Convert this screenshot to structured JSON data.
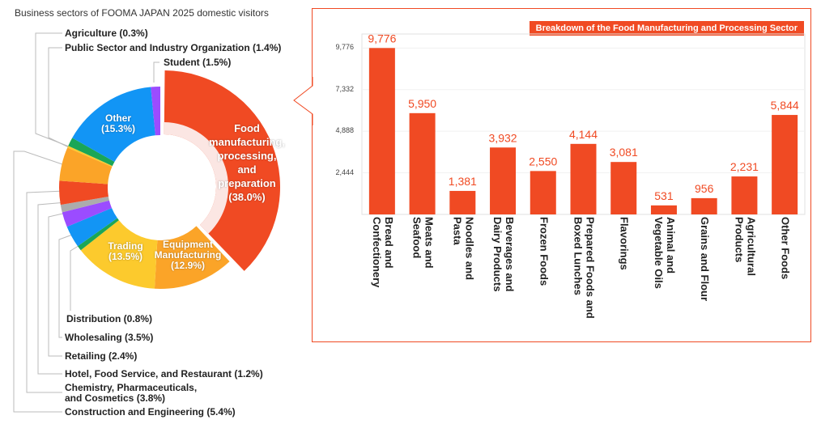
{
  "page_title": "Business sectors of FOOMA JAPAN 2025 domestic visitors",
  "colors": {
    "red": "#f04a23",
    "orange": "#fba428",
    "yellow": "#fcca2d",
    "green": "#1aa657",
    "blue": "#1295f5",
    "purple": "#9b4cff",
    "gray": "#acacac",
    "pale": "#fbe6e3"
  },
  "chart_data": [
    {
      "type": "pie",
      "title": "Business sectors of FOOMA JAPAN 2025 domestic visitors",
      "slices": [
        {
          "label": "Food manufacturing, processing, and preparation",
          "value": 38.0,
          "text": "Food manufacturing, processing, and preparation (38.0%)",
          "color": "#f04a23"
        },
        {
          "label": "Equipment Manufacturing",
          "value": 12.9,
          "text": "Equipment Manufacturing (12.9%)",
          "color": "#fba428"
        },
        {
          "label": "Trading",
          "value": 13.5,
          "text": "Trading (13.5%)",
          "color": "#fcca2d"
        },
        {
          "label": "Distribution",
          "value": 0.8,
          "text": "Distribution (0.8%)",
          "color": "#1aa657"
        },
        {
          "label": "Wholesaling",
          "value": 3.5,
          "text": "Wholesaling (3.5%)",
          "color": "#1295f5"
        },
        {
          "label": "Retailing",
          "value": 2.4,
          "text": "Retailing (2.4%)",
          "color": "#9b4cff"
        },
        {
          "label": "Hotel, Food Service, and Restaurant",
          "value": 1.2,
          "text": "Hotel, Food Service, and Restaurant (1.2%)",
          "color": "#acacac"
        },
        {
          "label": "Chemistry, Pharmaceuticals, and Cosmetics",
          "value": 3.8,
          "text": "Chemistry, Pharmaceuticals, and Cosmetics (3.8%)",
          "color": "#f04a23"
        },
        {
          "label": "Construction and Engineering",
          "value": 5.4,
          "text": "Construction and Engineering (5.4%)",
          "color": "#fba428"
        },
        {
          "label": "Agriculture",
          "value": 0.3,
          "text": "Agriculture (0.3%)",
          "color": "#fcca2d"
        },
        {
          "label": "Public Sector and Industry Organization",
          "value": 1.4,
          "text": "Public Sector and Industry Organization (1.4%)",
          "color": "#1aa657"
        },
        {
          "label": "Other",
          "value": 15.3,
          "text": "Other (15.3%)",
          "color": "#1295f5"
        },
        {
          "label": "Student",
          "value": 1.5,
          "text": "Student (1.5%)",
          "color": "#9b4cff"
        }
      ],
      "inner_labels": {
        "food": [
          "Food",
          "manufacturing,",
          "processing,",
          "and",
          "preparation",
          "(38.0%)"
        ],
        "equipment": [
          "Equipment",
          "Manufacturing",
          "(12.9%)"
        ],
        "trading": [
          "Trading",
          "(13.5%)"
        ],
        "other": [
          "Other",
          "(15.3%)"
        ]
      },
      "chemistry_lines": [
        "Chemistry, Pharmaceuticals,",
        "and Cosmetics (3.8%)"
      ]
    },
    {
      "type": "bar",
      "title": "Breakdown of the Food Manufacturing and Processing Sector",
      "categories": [
        [
          "Bread and",
          "Confectionery"
        ],
        [
          "Meats and",
          "Seafood"
        ],
        [
          "Noodles and",
          "Pasta"
        ],
        [
          "Beverages and",
          "Dairy Products"
        ],
        [
          "Frozen Foods"
        ],
        [
          "Prepared Foods and",
          "Boxed Lunches"
        ],
        [
          "Flavorings"
        ],
        [
          "Animal and",
          "Vegetable Oils"
        ],
        [
          "Grains and Flour"
        ],
        [
          "Agricultural",
          "Products"
        ],
        [
          "Other Foods"
        ]
      ],
      "values": [
        9776,
        5950,
        1381,
        3932,
        2550,
        4144,
        3081,
        531,
        956,
        2231,
        5844
      ],
      "value_labels": [
        "9,776",
        "5,950",
        "1,381",
        "3,932",
        "2,550",
        "4,144",
        "3,081",
        "531",
        "956",
        "2,231",
        "5,844"
      ],
      "yticks": [
        2444,
        4888,
        7332,
        9776
      ],
      "ytick_labels": [
        "2,444",
        "4,888",
        "7,332",
        "9,776"
      ],
      "ylim": [
        0,
        10600
      ],
      "grid": true,
      "color": "#f04a23"
    }
  ]
}
